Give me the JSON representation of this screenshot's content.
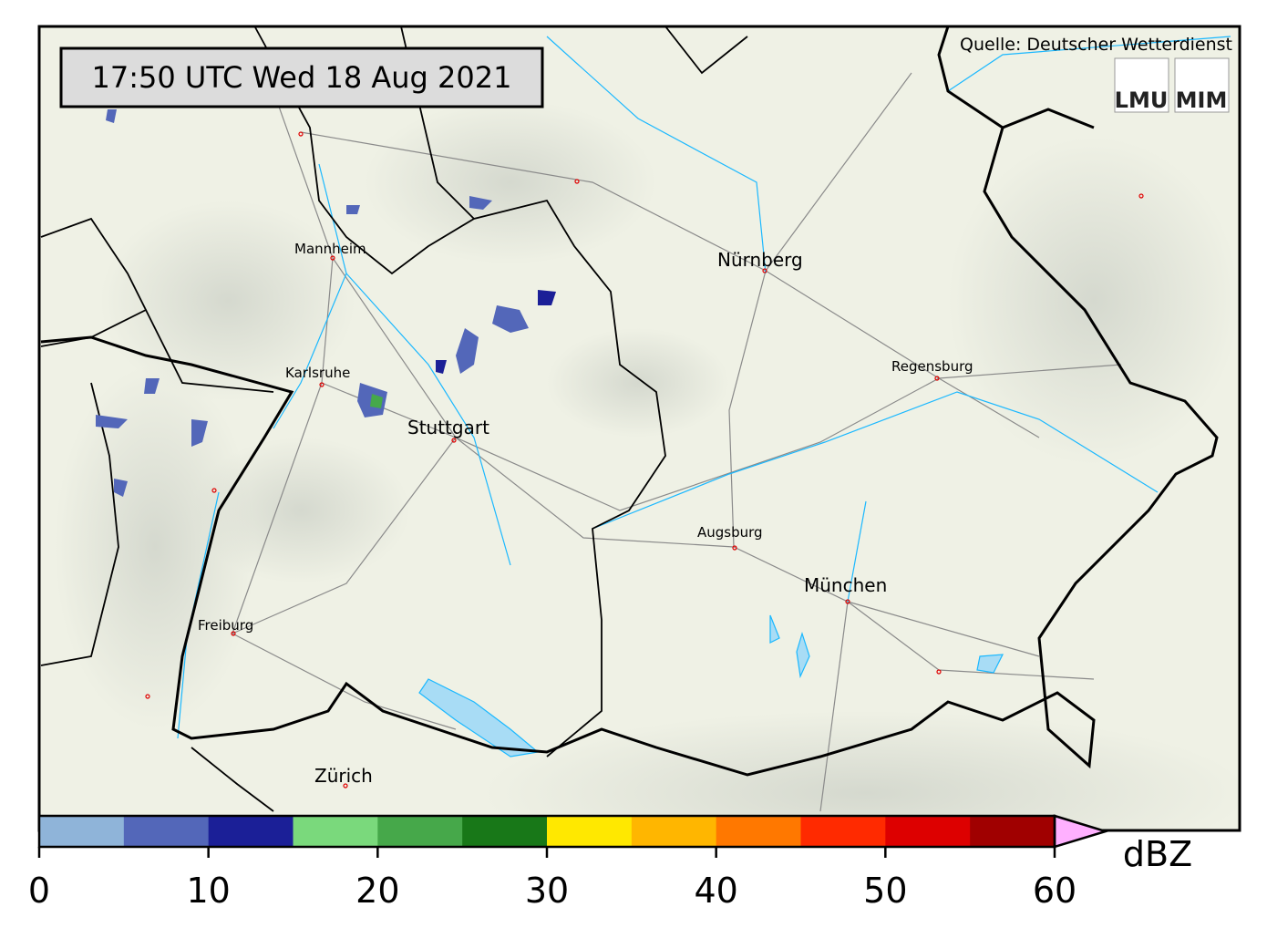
{
  "timestamp": "17:50 UTC  Wed 18 Aug 2021",
  "source": "Quelle: Deutscher Wetterdienst",
  "logos": [
    "LMU",
    "MIM"
  ],
  "cities": [
    {
      "name": "Mannheim",
      "size": "small"
    },
    {
      "name": "Karlsruhe",
      "size": "small"
    },
    {
      "name": "Stuttgart",
      "size": "large"
    },
    {
      "name": "Nürnberg",
      "size": "large"
    },
    {
      "name": "Regensburg",
      "size": "small"
    },
    {
      "name": "Augsburg",
      "size": "small"
    },
    {
      "name": "München",
      "size": "large"
    },
    {
      "name": "Freiburg",
      "size": "small"
    },
    {
      "name": "Zürich",
      "size": "large"
    }
  ],
  "colorbar": {
    "unit": "dBZ",
    "ticks": [
      "0",
      "10",
      "20",
      "30",
      "40",
      "50",
      "60"
    ],
    "bounds": [
      0,
      5,
      10,
      15,
      20,
      25,
      30,
      35,
      40,
      45,
      50,
      55,
      60
    ],
    "colors": [
      "#8fb4d9",
      "#5367b9",
      "#1b1f97",
      "#7ad97c",
      "#46a84a",
      "#187818",
      "#ffe800",
      "#ffb600",
      "#ff7800",
      "#ff2a00",
      "#dd0000",
      "#a00000"
    ],
    "extend_color": "#ffb0ff"
  },
  "colors": {
    "terrain": "#eef0e4",
    "rivers": "#1ab8ff",
    "borders": "#000000",
    "roads": "#8a8a8a"
  }
}
